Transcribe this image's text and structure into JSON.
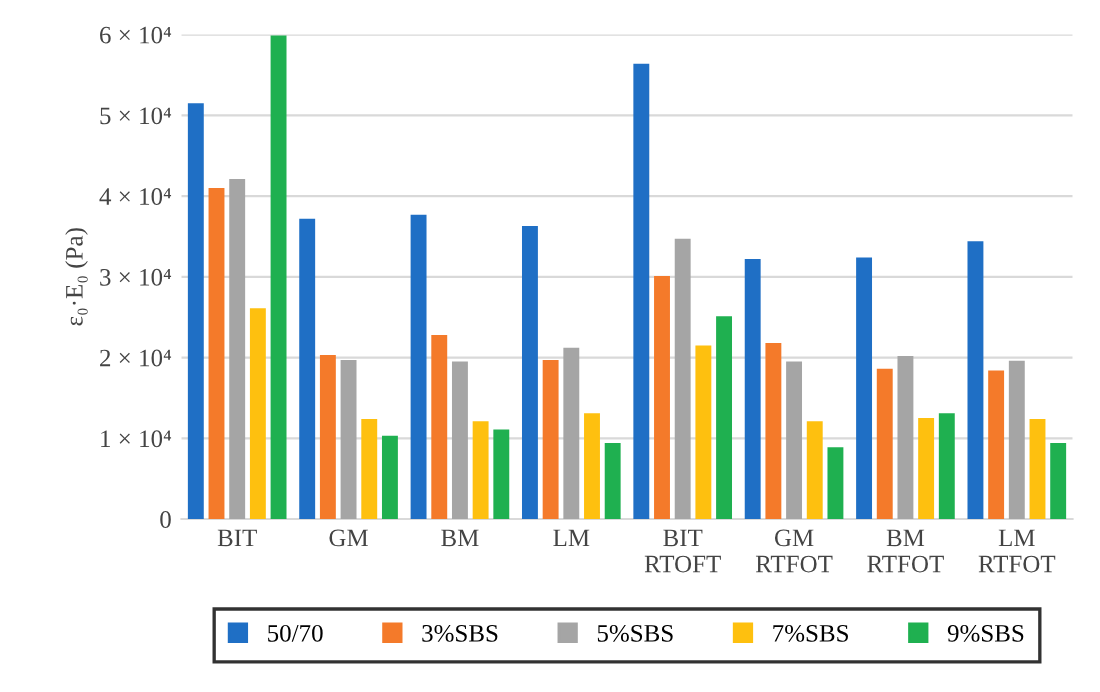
{
  "chart_data": {
    "type": "bar",
    "ylabel": "ε₀·E₀ (Pa)",
    "categories": [
      "BIT",
      "GM",
      "BM",
      "LM",
      "BIT\nRTOFT",
      "GM\nRTFOT",
      "BM\nRTFOT",
      "LM\nRTFOT"
    ],
    "series": [
      {
        "name": "50/70",
        "color": "#1f6fc5",
        "values": [
          51500,
          37200,
          37700,
          36300,
          56400,
          32200,
          32400,
          34400
        ]
      },
      {
        "name": "3%SBS",
        "color": "#f47a2a",
        "values": [
          41000,
          20300,
          22800,
          19700,
          30100,
          21800,
          18600,
          18400
        ]
      },
      {
        "name": "5%SBS",
        "color": "#a5a5a5",
        "values": [
          42100,
          19700,
          19500,
          21200,
          34700,
          19500,
          20200,
          19600
        ]
      },
      {
        "name": "7%SBS",
        "color": "#fec00f",
        "values": [
          26100,
          12400,
          12100,
          13100,
          21500,
          12100,
          12500,
          12400
        ]
      },
      {
        "name": "9%SBS",
        "color": "#1fb050",
        "values": [
          59900,
          10300,
          11100,
          9400,
          25100,
          8900,
          13100,
          9400
        ]
      }
    ],
    "ylim": [
      0,
      60000
    ],
    "yticks": [
      0,
      {
        "value": 10000,
        "label": "1 × 10⁴"
      },
      {
        "value": 20000,
        "label": "2 × 10⁴"
      },
      {
        "value": 30000,
        "label": "3 × 10⁴"
      },
      {
        "value": 40000,
        "label": "4 × 10⁴"
      },
      {
        "value": 50000,
        "label": "5 × 10⁴"
      },
      {
        "value": 60000,
        "label": "6 × 10⁴"
      }
    ],
    "grid": "y",
    "legend": "bottom"
  }
}
